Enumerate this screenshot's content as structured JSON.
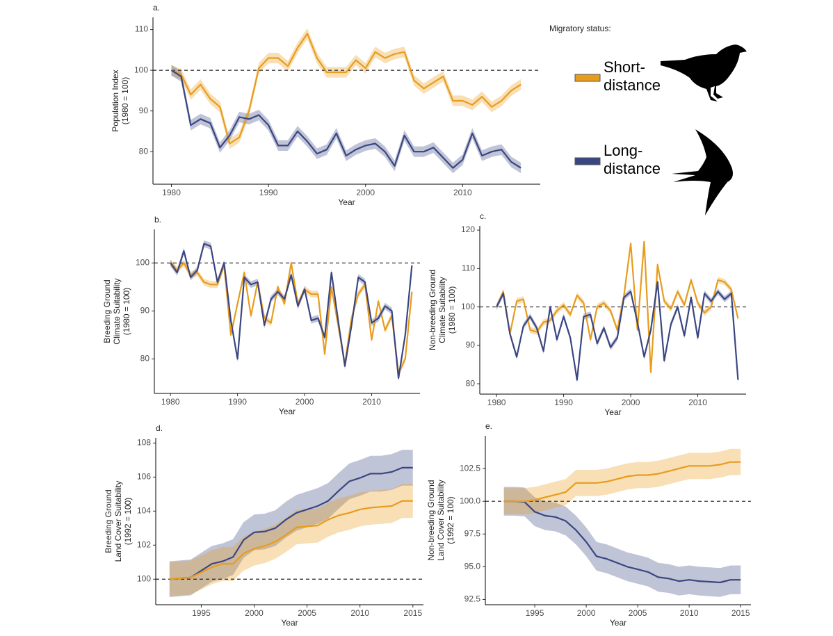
{
  "chart_data": [
    {
      "type": "line",
      "panel": "a.",
      "ylabel": [
        "Population Index",
        "(1980 = 100)"
      ],
      "xlabel": "Year",
      "legend_title": "Migratory status:",
      "x": [
        1980,
        1981,
        1982,
        1983,
        1984,
        1985,
        1986,
        1987,
        1988,
        1989,
        1990,
        1991,
        1992,
        1993,
        1994,
        1995,
        1996,
        1997,
        1998,
        1999,
        2000,
        2001,
        2002,
        2003,
        2004,
        2005,
        2006,
        2007,
        2008,
        2009,
        2010,
        2011,
        2012,
        2013,
        2014,
        2015,
        2016
      ],
      "xlim": [
        1978.1,
        2018
      ],
      "xticks": [
        1980,
        1990,
        2000,
        2010
      ],
      "ylim": [
        72,
        113
      ],
      "yticks": [
        80,
        90,
        100,
        110
      ],
      "hline": 100,
      "series": [
        {
          "name": "Short-distance",
          "color": "#e89c1c",
          "error": 1.3,
          "values": [
            100,
            99,
            94,
            96.5,
            93,
            91,
            82,
            83.5,
            90,
            100.5,
            103,
            103,
            101,
            105.5,
            109,
            103,
            99.5,
            99.5,
            99.5,
            102.5,
            100.5,
            104.5,
            103,
            104,
            104.5,
            97.5,
            95.5,
            97,
            98.5,
            92.5,
            92.5,
            91.5,
            93.5,
            91,
            92.5,
            95,
            96.5
          ]
        },
        {
          "name": "Long-distance",
          "color": "#3a4682",
          "error": 1.3,
          "values": [
            100,
            98.5,
            86.5,
            88,
            87,
            81,
            84,
            88.5,
            88,
            89,
            86.5,
            81.5,
            81.5,
            85,
            82.5,
            79.5,
            80.5,
            84.5,
            79,
            80.5,
            81.5,
            82,
            80,
            76.5,
            84,
            80,
            80,
            81,
            78.5,
            76,
            78,
            84.5,
            79,
            80,
            80.5,
            77.5,
            76
          ]
        }
      ]
    },
    {
      "type": "line",
      "panel": "b.",
      "ylabel": [
        "Breeding Ground",
        "Climate Suitability",
        "(1980 = 100)"
      ],
      "xlabel": "Year",
      "x": [
        1980,
        1981,
        1982,
        1983,
        1984,
        1985,
        1986,
        1987,
        1988,
        1989,
        1990,
        1991,
        1992,
        1993,
        1994,
        1995,
        1996,
        1997,
        1998,
        1999,
        2000,
        2001,
        2002,
        2003,
        2004,
        2005,
        2006,
        2007,
        2008,
        2009,
        2010,
        2011,
        2012,
        2013,
        2014,
        2015,
        2016
      ],
      "xlim": [
        1977.6,
        2017.2
      ],
      "xticks": [
        1980,
        1990,
        2000,
        2010
      ],
      "ylim": [
        72.8,
        107
      ],
      "yticks": [
        80,
        90,
        100
      ],
      "hline": 100,
      "series": [
        {
          "color": "#e89c1c",
          "error": 0.7,
          "values": [
            100,
            98.5,
            100,
            97.5,
            98,
            96,
            95.5,
            95.5,
            99.5,
            85,
            91.5,
            98,
            89,
            96,
            88.5,
            87.5,
            95,
            91.5,
            100,
            91.5,
            94.5,
            93.5,
            93.5,
            81,
            95,
            87,
            79,
            88.5,
            93.5,
            95.5,
            84,
            92,
            86,
            89,
            77,
            80,
            94
          ]
        },
        {
          "color": "#3a4682",
          "error": 0.7,
          "values": [
            100,
            98,
            102.5,
            97,
            98.5,
            104,
            103.5,
            96,
            100,
            88,
            80,
            97,
            95.5,
            96,
            87,
            92.5,
            94,
            92.5,
            97.5,
            91,
            94.5,
            88,
            88.5,
            84.5,
            98,
            88,
            78.5,
            87,
            97,
            96,
            87.5,
            88.5,
            91,
            90,
            76,
            85,
            99.5
          ]
        }
      ]
    },
    {
      "type": "line",
      "panel": "c.",
      "ylabel": [
        "Non-breeding Ground",
        "Climate Suitability",
        "(1980 = 100)"
      ],
      "xlabel": "Year",
      "x": [
        1980,
        1981,
        1982,
        1983,
        1984,
        1985,
        1986,
        1987,
        1988,
        1989,
        1990,
        1991,
        1992,
        1993,
        1994,
        1995,
        1996,
        1997,
        1998,
        1999,
        2000,
        2001,
        2002,
        2003,
        2004,
        2005,
        2006,
        2007,
        2008,
        2009,
        2010,
        2011,
        2012,
        2013,
        2014,
        2015,
        2016
      ],
      "xlim": [
        1977.5,
        2017.2
      ],
      "xticks": [
        1980,
        1990,
        2000,
        2010
      ],
      "ylim": [
        77.3,
        121.1
      ],
      "yticks": [
        80,
        90,
        100,
        110,
        120
      ],
      "hline": 100,
      "series": [
        {
          "color": "#e89c1c",
          "error": 0.8,
          "values": [
            100,
            104,
            93,
            101.5,
            102,
            94,
            93.5,
            96,
            96.5,
            99,
            100.5,
            98,
            103,
            101,
            91.5,
            100,
            101,
            99,
            94,
            103,
            116.5,
            94,
            117,
            83,
            111,
            101.5,
            99.5,
            104,
            100.5,
            107,
            101,
            98.5,
            100,
            107,
            106.5,
            104.5,
            97
          ]
        },
        {
          "color": "#3a4682",
          "error": 0.8,
          "values": [
            100,
            103.5,
            93,
            87,
            95,
            97.5,
            94.5,
            88.5,
            100,
            91.5,
            97.5,
            92,
            81,
            97.5,
            98,
            90.5,
            94.5,
            89.5,
            92,
            102.5,
            104,
            96,
            87,
            94,
            106.5,
            86,
            95.5,
            100,
            92.5,
            102.5,
            92,
            103.5,
            101.5,
            104,
            102,
            103.5,
            81
          ]
        }
      ]
    },
    {
      "type": "line",
      "panel": "d.",
      "ylabel": [
        "Breeding Ground",
        "Land Cover Suitability",
        "(1992 = 100)"
      ],
      "xlabel": "Year",
      "x": [
        1992,
        1993,
        1994,
        1995,
        1996,
        1997,
        1998,
        1999,
        2000,
        2001,
        2002,
        2003,
        2004,
        2005,
        2006,
        2007,
        2008,
        2009,
        2010,
        2011,
        2012,
        2013,
        2014,
        2015
      ],
      "xlim": [
        1990.7,
        2016
      ],
      "xticks": [
        1995,
        2000,
        2005,
        2010,
        2015
      ],
      "ylim": [
        98.5,
        108.3
      ],
      "yticks": [
        100,
        102,
        104,
        106,
        108
      ],
      "hline": 100,
      "series": [
        {
          "color": "#3a4682",
          "error": 1.05,
          "values": [
            100,
            100.05,
            100.1,
            100.5,
            100.9,
            101.05,
            101.3,
            102.3,
            102.75,
            102.8,
            103,
            103.5,
            103.9,
            104.1,
            104.3,
            104.6,
            105.2,
            105.75,
            105.95,
            106.2,
            106.2,
            106.3,
            106.55,
            106.55
          ]
        },
        {
          "color": "#e89c1c",
          "error": 1,
          "values": [
            100,
            100.05,
            100.1,
            100.4,
            100.7,
            100.9,
            100.9,
            101.5,
            101.8,
            101.95,
            102.2,
            102.6,
            103.05,
            103.1,
            103.15,
            103.5,
            103.75,
            103.9,
            104.1,
            104.2,
            104.25,
            104.3,
            104.6,
            104.6
          ]
        }
      ]
    },
    {
      "type": "line",
      "panel": "e.",
      "ylabel": [
        "Non-breeding Ground",
        "Land Cover Suitability",
        "(1992 = 100)"
      ],
      "xlabel": "Year",
      "x": [
        1992,
        1993,
        1994,
        1995,
        1996,
        1997,
        1998,
        1999,
        2000,
        2001,
        2002,
        2003,
        2004,
        2005,
        2006,
        2007,
        2008,
        2009,
        2010,
        2011,
        2012,
        2013,
        2014,
        2015
      ],
      "xlim": [
        1990.2,
        2016
      ],
      "xticks": [
        1995,
        2000,
        2005,
        2010,
        2015
      ],
      "ylim": [
        92.1,
        105
      ],
      "yticks": [
        92.5,
        {
          "value": 95,
          "label": "95.0"
        },
        97.5,
        {
          "value": 100,
          "label": "100.0"
        },
        102.5
      ],
      "hline": 100,
      "series": [
        {
          "color": "#3a4682",
          "error": 1.1,
          "values": [
            100,
            100,
            99.95,
            99.2,
            98.9,
            98.8,
            98.5,
            97.8,
            96.9,
            95.8,
            95.6,
            95.3,
            95,
            94.8,
            94.6,
            94.2,
            94.1,
            93.9,
            94,
            93.9,
            93.85,
            93.8,
            94,
            94
          ]
        },
        {
          "color": "#e89c1c",
          "error": 1,
          "values": [
            100,
            100,
            100,
            100.1,
            100.3,
            100.5,
            100.7,
            101.4,
            101.4,
            101.4,
            101.5,
            101.7,
            101.9,
            102,
            102,
            102.1,
            102.3,
            102.5,
            102.7,
            102.7,
            102.7,
            102.8,
            103,
            103
          ]
        }
      ]
    }
  ]
}
